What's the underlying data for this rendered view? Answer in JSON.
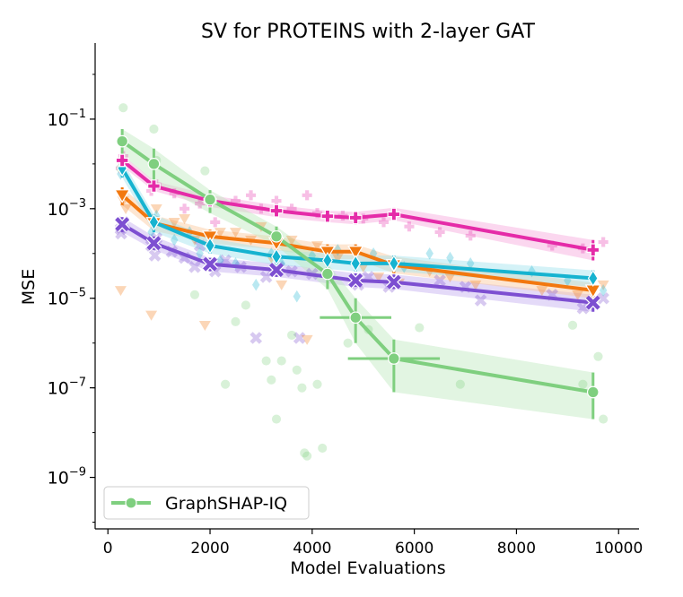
{
  "chart_data": {
    "type": "line",
    "title": "SV for PROTEINS with 2-layer GAT",
    "xlabel": "Model Evaluations",
    "ylabel": "MSE",
    "xlim": [
      -250,
      10400
    ],
    "ylim_log10": [
      -10.15,
      0.7
    ],
    "x_ticks": [
      0,
      2000,
      4000,
      6000,
      8000,
      10000
    ],
    "x_tick_labels": [
      "0",
      "2000",
      "4000",
      "6000",
      "8000",
      "10000"
    ],
    "y_ticks_log10": [
      -1,
      -3,
      -5,
      -7,
      -9
    ],
    "y_tick_bases": [
      "10",
      "10",
      "10",
      "10",
      "10"
    ],
    "y_tick_exponents": [
      "−1",
      "−3",
      "−5",
      "−7",
      "−9"
    ],
    "legend": {
      "position": "bottom-left",
      "entries": [
        "GraphSHAP-IQ"
      ]
    },
    "series": [
      {
        "name": "purple-x",
        "marker": "x",
        "color": "#7d4fd1",
        "fill": "#c3aef0",
        "x": [
          280,
          900,
          2000,
          3300,
          4850,
          5600,
          9500
        ],
        "y": [
          0.00045,
          0.00017,
          5.8e-05,
          4.3e-05,
          2.5e-05,
          2.3e-05,
          8e-06
        ],
        "band_low": [
          0.0003,
          0.00012,
          4e-05,
          3e-05,
          1.8e-05,
          1.6e-05,
          5e-06
        ],
        "band_high": [
          0.00065,
          0.00024,
          8e-05,
          6e-05,
          3.6e-05,
          3.4e-05,
          1.2e-05
        ],
        "scatter": [
          [
            250,
            0.00035
          ],
          [
            260,
            0.00028
          ],
          [
            300,
            0.0005
          ],
          [
            850,
            0.00015
          ],
          [
            920,
            9e-05
          ],
          [
            950,
            0.00022
          ],
          [
            1250,
            0.00011
          ],
          [
            1500,
            8e-05
          ],
          [
            1700,
            5e-05
          ],
          [
            1800,
            0.00015
          ],
          [
            2100,
            4e-05
          ],
          [
            2300,
            7e-05
          ],
          [
            2600,
            5e-05
          ],
          [
            2900,
            1.3e-06
          ],
          [
            3100,
            3e-05
          ],
          [
            3350,
            5e-05
          ],
          [
            3600,
            4e-05
          ],
          [
            3750,
            1.3e-06
          ],
          [
            4000,
            3.5e-05
          ],
          [
            4900,
            2e-05
          ],
          [
            5100,
            3e-05
          ],
          [
            5500,
            1.8e-05
          ],
          [
            6500,
            2.5e-05
          ],
          [
            7000,
            1.8e-05
          ],
          [
            7300,
            9e-06
          ],
          [
            8700,
            1.2e-05
          ],
          [
            9300,
            6e-06
          ],
          [
            9700,
            1e-05
          ]
        ]
      },
      {
        "name": "orange-triangle",
        "marker": "v",
        "color": "#f2780f",
        "fill": "#fbc79b",
        "x": [
          280,
          900,
          2000,
          3300,
          4300,
          4850,
          5600,
          9500
        ],
        "y": [
          0.002,
          0.00048,
          0.00024,
          0.00017,
          0.00011,
          0.00011,
          5.5e-05,
          1.5e-05
        ],
        "band_low": [
          0.0012,
          0.00032,
          0.00017,
          0.00012,
          7.5e-05,
          7.5e-05,
          3.6e-05,
          1e-05
        ],
        "band_high": [
          0.003,
          0.00072,
          0.00034,
          0.00024,
          0.00016,
          0.00016,
          8.5e-05,
          2.2e-05
        ],
        "scatter": [
          [
            250,
            1.5e-05
          ],
          [
            300,
            0.0015
          ],
          [
            350,
            0.001
          ],
          [
            850,
            4.2e-06
          ],
          [
            950,
            0.001
          ],
          [
            1300,
            0.0005
          ],
          [
            1500,
            0.0006
          ],
          [
            1700,
            0.0002
          ],
          [
            1900,
            2.5e-06
          ],
          [
            2200,
            0.0003
          ],
          [
            2500,
            0.0003
          ],
          [
            2800,
            0.0002
          ],
          [
            3000,
            0.0004
          ],
          [
            3200,
            8e-05
          ],
          [
            3400,
            2e-05
          ],
          [
            3600,
            0.0002
          ],
          [
            3900,
            1.2e-06
          ],
          [
            4100,
            0.00015
          ],
          [
            4500,
            8e-05
          ],
          [
            5000,
            5e-05
          ],
          [
            5300,
            3e-05
          ],
          [
            5700,
            2.2e-05
          ],
          [
            6300,
            4e-05
          ],
          [
            6700,
            3e-05
          ],
          [
            7200,
            2e-05
          ],
          [
            8500,
            1.5e-05
          ],
          [
            9200,
            1.2e-05
          ],
          [
            9700,
            2e-05
          ]
        ]
      },
      {
        "name": "cyan-diamond",
        "marker": "d",
        "color": "#16b3d0",
        "fill": "#9fe2ee",
        "x": [
          280,
          900,
          2000,
          3300,
          4300,
          4850,
          5600,
          9500
        ],
        "y": [
          0.008,
          0.0005,
          0.00015,
          8.5e-05,
          7e-05,
          6e-05,
          6e-05,
          2.8e-05
        ],
        "band_low": [
          0.005,
          0.0003,
          0.0001,
          5.5e-05,
          4.5e-05,
          4e-05,
          4e-05,
          1.8e-05
        ],
        "band_high": [
          0.012,
          0.00075,
          0.00022,
          0.00012,
          0.0001,
          9e-05,
          9e-05,
          4.2e-05
        ],
        "scatter": [
          [
            250,
            0.006
          ],
          [
            300,
            0.002
          ],
          [
            850,
            0.0003
          ],
          [
            950,
            0.0007
          ],
          [
            1300,
            0.0002
          ],
          [
            1600,
            0.0003
          ],
          [
            1800,
            0.0001
          ],
          [
            2200,
            7e-05
          ],
          [
            2500,
            6e-05
          ],
          [
            2900,
            2e-05
          ],
          [
            3200,
            0.0001
          ],
          [
            3400,
            6e-05
          ],
          [
            3700,
            1.1e-05
          ],
          [
            4000,
            9e-05
          ],
          [
            4500,
            0.00012
          ],
          [
            5200,
            0.0001
          ],
          [
            5800,
            5e-05
          ],
          [
            6300,
            0.0001
          ],
          [
            6700,
            8e-05
          ],
          [
            7100,
            6e-05
          ],
          [
            8300,
            4e-05
          ],
          [
            9000,
            2.5e-05
          ],
          [
            9700,
            1.5e-05
          ]
        ]
      },
      {
        "name": "magenta-plus",
        "marker": "P",
        "color": "#e52ba8",
        "fill": "#f6a6dc",
        "x": [
          280,
          900,
          2000,
          3300,
          4300,
          4850,
          5600,
          9500
        ],
        "y": [
          0.012,
          0.0032,
          0.0015,
          0.0009,
          0.00068,
          0.00063,
          0.00075,
          0.00012
        ],
        "band_low": [
          0.009,
          0.0025,
          0.0011,
          0.00065,
          0.0005,
          0.00045,
          0.00055,
          7e-05
        ],
        "band_high": [
          0.016,
          0.0042,
          0.002,
          0.0012,
          0.0009,
          0.00085,
          0.00105,
          0.0002
        ],
        "scatter": [
          [
            250,
            0.008
          ],
          [
            300,
            0.015
          ],
          [
            850,
            0.0025
          ],
          [
            950,
            0.0035
          ],
          [
            1300,
            0.0022
          ],
          [
            1500,
            0.001
          ],
          [
            1800,
            0.0013
          ],
          [
            2100,
            0.0005
          ],
          [
            2500,
            0.0015
          ],
          [
            2800,
            0.002
          ],
          [
            3000,
            0.001
          ],
          [
            3300,
            0.0015
          ],
          [
            3600,
            0.001
          ],
          [
            3900,
            0.002
          ],
          [
            4100,
            0.0008
          ],
          [
            4600,
            0.0007
          ],
          [
            5000,
            0.0006
          ],
          [
            5400,
            0.0005
          ],
          [
            5900,
            0.0004
          ],
          [
            6500,
            0.0003
          ],
          [
            7100,
            0.00025
          ],
          [
            8700,
            0.00015
          ],
          [
            9300,
            0.00013
          ],
          [
            9700,
            0.00018
          ]
        ]
      },
      {
        "name": "GraphSHAP-IQ",
        "marker": "o",
        "color": "#7fcf7f",
        "fill": "#bfe8bf",
        "x": [
          280,
          900,
          2000,
          3300,
          4300,
          4850,
          5600,
          9500
        ],
        "y": [
          0.032,
          0.01,
          0.0016,
          0.00024,
          3.5e-05,
          3.7e-06,
          4.5e-07,
          8e-08
        ],
        "band_low": [
          0.016,
          0.004,
          0.0008,
          0.00015,
          1.6e-05,
          1e-06,
          8e-08,
          2e-08
        ],
        "band_high": [
          0.06,
          0.022,
          0.0026,
          0.0004,
          6e-05,
          1e-05,
          1.2e-06,
          2.2e-07
        ],
        "x_err": [
          0,
          0,
          0,
          0,
          0,
          700,
          900,
          0
        ],
        "scatter": [
          [
            300,
            0.18
          ],
          [
            250,
            0.008
          ],
          [
            900,
            0.06
          ],
          [
            950,
            0.012
          ],
          [
            1900,
            0.007
          ],
          [
            1700,
            1.2e-05
          ],
          [
            2300,
            1.2e-07
          ],
          [
            2500,
            3e-06
          ],
          [
            2700,
            7e-06
          ],
          [
            3100,
            4e-07
          ],
          [
            3200,
            1.5e-07
          ],
          [
            3300,
            2e-08
          ],
          [
            3400,
            4e-07
          ],
          [
            3600,
            1.5e-06
          ],
          [
            3700,
            2.5e-07
          ],
          [
            3800,
            1e-07
          ],
          [
            3850,
            3.5e-09
          ],
          [
            3900,
            3e-09
          ],
          [
            4100,
            1.2e-07
          ],
          [
            4200,
            4.5e-09
          ],
          [
            4700,
            1e-06
          ],
          [
            5100,
            2e-06
          ],
          [
            6100,
            2.2e-06
          ],
          [
            6900,
            1.2e-07
          ],
          [
            9100,
            2.5e-06
          ],
          [
            9300,
            1.2e-07
          ],
          [
            9600,
            5e-07
          ],
          [
            9700,
            2e-08
          ]
        ]
      }
    ]
  }
}
